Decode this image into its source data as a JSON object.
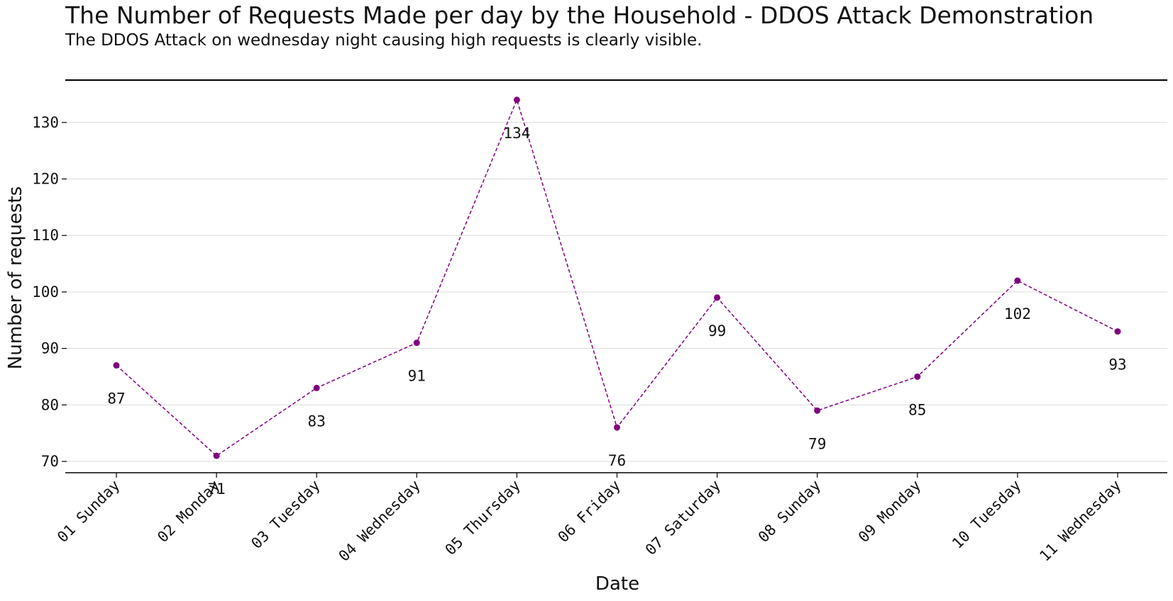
{
  "chart_data": {
    "type": "line",
    "title": "The Number of Requests Made per day by the Household - DDOS Attack Demonstration",
    "subtitle": "The DDOS Attack on wednesday night causing high requests is clearly visible.",
    "xlabel": "Date",
    "ylabel": "Number of requests",
    "categories": [
      "01 Sunday",
      "02 Monday",
      "03 Tuesday",
      "04 Wednesday",
      "05 Thursday",
      "06 Friday",
      "07 Saturday",
      "08 Sunday",
      "09 Monday",
      "10 Tuesday",
      "11 Wednesday"
    ],
    "values": [
      87,
      71,
      83,
      91,
      134,
      76,
      99,
      79,
      85,
      102,
      93
    ],
    "yticks": [
      70,
      80,
      90,
      100,
      110,
      120,
      130
    ],
    "ylim": [
      68,
      137.5
    ],
    "grid": "horizontal",
    "line_style": "dashed",
    "color": "#800080"
  }
}
